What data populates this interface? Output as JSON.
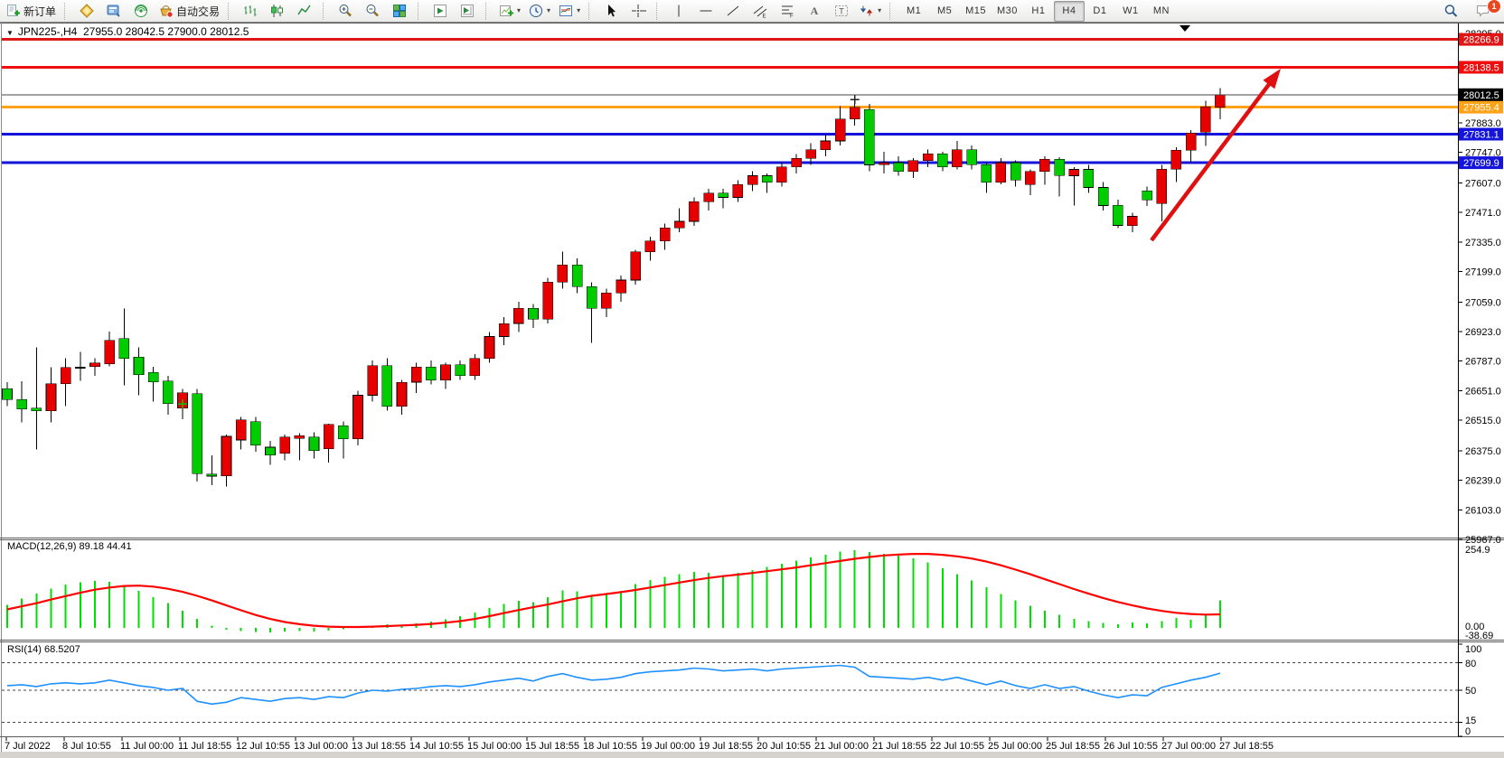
{
  "toolbar": {
    "active_timeframe": "H4",
    "groups": [
      {
        "items": [
          {
            "icon": "new-order",
            "label": "新订单",
            "name": "new-order-button"
          }
        ]
      },
      {
        "items": [
          {
            "icon": "charts-gold",
            "name": "market-watch-button"
          },
          {
            "icon": "terminal-blue",
            "name": "terminal-button"
          },
          {
            "icon": "signals-green",
            "name": "signals-button"
          },
          {
            "icon": "auto-trading",
            "label": "自动交易",
            "name": "auto-trading-button"
          }
        ]
      },
      {
        "items": [
          {
            "icon": "chart-bars",
            "name": "bar-chart-button"
          },
          {
            "icon": "chart-candles",
            "name": "candlestick-chart-button"
          },
          {
            "icon": "chart-line",
            "name": "line-chart-button"
          }
        ]
      },
      {
        "items": [
          {
            "icon": "zoom-in",
            "name": "zoom-in-button"
          },
          {
            "icon": "zoom-out",
            "name": "zoom-out-button"
          },
          {
            "icon": "tile-windows",
            "name": "tile-windows-button"
          }
        ]
      },
      {
        "items": [
          {
            "icon": "arrange-a",
            "name": "auto-scroll-button"
          },
          {
            "icon": "arrange-b",
            "name": "chart-shift-button"
          }
        ]
      },
      {
        "items": [
          {
            "icon": "add-indicator",
            "dropdown": true,
            "name": "indicators-button"
          },
          {
            "icon": "period-clock",
            "dropdown": true,
            "name": "periods-button"
          },
          {
            "icon": "template",
            "dropdown": true,
            "name": "templates-button"
          }
        ]
      },
      {
        "items": [
          {
            "icon": "cursor",
            "name": "cursor-button"
          },
          {
            "icon": "crosshair",
            "name": "crosshair-button"
          }
        ]
      },
      {
        "items": [
          {
            "icon": "vline",
            "name": "vertical-line-button"
          },
          {
            "icon": "hline",
            "name": "horizontal-line-button"
          },
          {
            "icon": "trendline",
            "name": "trendline-button"
          },
          {
            "icon": "channel",
            "name": "equidistant-channel-button"
          },
          {
            "icon": "fibo",
            "name": "fibonacci-button"
          },
          {
            "icon": "text-a",
            "name": "text-button"
          },
          {
            "icon": "text-label",
            "name": "text-label-button"
          },
          {
            "icon": "shapes",
            "dropdown": true,
            "name": "arrows-button"
          }
        ]
      },
      {
        "items": [
          {
            "tf": "M1"
          },
          {
            "tf": "M5"
          },
          {
            "tf": "M15"
          },
          {
            "tf": "M30"
          },
          {
            "tf": "H1"
          },
          {
            "tf": "H4"
          },
          {
            "tf": "D1"
          },
          {
            "tf": "W1"
          },
          {
            "tf": "MN"
          }
        ]
      }
    ],
    "right_items": [
      {
        "icon": "search",
        "name": "search-button"
      },
      {
        "icon": "chat",
        "badge": "1",
        "name": "notifications-button"
      }
    ]
  },
  "chart": {
    "symbol_period": "JPN225-,H4",
    "ohlc_text": "27955.0 28042.5 27900.0 28012.5"
  },
  "chart_data": {
    "type": "candlestick",
    "title": "JPN225-,H4",
    "colors": {
      "up": "#e60000",
      "down": "#00cc00",
      "wick": "#000000",
      "doji": "#000000"
    },
    "price_ticks": [
      "28295.0",
      "27883.0",
      "27747.0",
      "27607.0",
      "27471.0",
      "27335.0",
      "27199.0",
      "27059.0",
      "26923.0",
      "26787.0",
      "26651.0",
      "26515.0",
      "26375.0",
      "26239.0",
      "26103.0",
      "25967.0"
    ],
    "levels": [
      {
        "price": 28266.9,
        "label": "28266.9",
        "color": "#dd1616",
        "width": 3
      },
      {
        "price": 28138.5,
        "label": "28138.5",
        "color": "#ee0e0e",
        "width": 3
      },
      {
        "price": 27955.4,
        "label": "27955.4",
        "color": "#ffa216",
        "width": 3
      },
      {
        "price": 27831.1,
        "label": "27831.1",
        "color": "#1414dd",
        "width": 3
      },
      {
        "price": 27699.9,
        "label": "27699.9",
        "color": "#1414dd",
        "width": 3
      }
    ],
    "current_price": {
      "value": 28012.5,
      "label": "28012.5",
      "line_color": "#444444",
      "box_color": "#000000"
    },
    "candles": [
      [
        26660,
        26690,
        26580,
        26610
      ],
      [
        26610,
        26695,
        26505,
        26566
      ],
      [
        26570,
        26850,
        26380,
        26558
      ],
      [
        26558,
        26758,
        26505,
        26683
      ],
      [
        26683,
        26800,
        26580,
        26758
      ],
      [
        26758,
        26829,
        26696,
        26760
      ],
      [
        26762,
        26800,
        26720,
        26779
      ],
      [
        26775,
        26924,
        26762,
        26883
      ],
      [
        26891,
        27028,
        26675,
        26800
      ],
      [
        26805,
        26850,
        26630,
        26724
      ],
      [
        26735,
        26760,
        26600,
        26691
      ],
      [
        26695,
        26720,
        26540,
        26591
      ],
      [
        26570,
        26660,
        26520,
        26641
      ],
      [
        26637,
        26660,
        26233,
        26270
      ],
      [
        26267,
        26354,
        26217,
        26258
      ],
      [
        26260,
        26450,
        26210,
        26441
      ],
      [
        26424,
        26530,
        26380,
        26516
      ],
      [
        26508,
        26530,
        26370,
        26400
      ],
      [
        26391,
        26420,
        26310,
        26354
      ],
      [
        26362,
        26450,
        26330,
        26437
      ],
      [
        26432,
        26455,
        26330,
        26444
      ],
      [
        26437,
        26460,
        26340,
        26375
      ],
      [
        26383,
        26500,
        26320,
        26496
      ],
      [
        26490,
        26510,
        26340,
        26430
      ],
      [
        26430,
        26650,
        26400,
        26630
      ],
      [
        26630,
        26790,
        26600,
        26766
      ],
      [
        26766,
        26800,
        26560,
        26580
      ],
      [
        26580,
        26700,
        26540,
        26690
      ],
      [
        26690,
        26780,
        26640,
        26760
      ],
      [
        26760,
        26790,
        26680,
        26700
      ],
      [
        26700,
        26780,
        26660,
        26770
      ],
      [
        26770,
        26790,
        26700,
        26720
      ],
      [
        26720,
        26820,
        26700,
        26800
      ],
      [
        26800,
        26920,
        26780,
        26900
      ],
      [
        26900,
        26990,
        26860,
        26960
      ],
      [
        26960,
        27060,
        26920,
        27030
      ],
      [
        27030,
        27050,
        26940,
        26980
      ],
      [
        26980,
        27170,
        26960,
        27150
      ],
      [
        27150,
        27290,
        27120,
        27230
      ],
      [
        27230,
        27260,
        27100,
        27130
      ],
      [
        27130,
        27150,
        26870,
        27030
      ],
      [
        27030,
        27120,
        26990,
        27100
      ],
      [
        27100,
        27180,
        27060,
        27160
      ],
      [
        27160,
        27300,
        27140,
        27290
      ],
      [
        27290,
        27360,
        27250,
        27340
      ],
      [
        27340,
        27420,
        27300,
        27400
      ],
      [
        27400,
        27490,
        27380,
        27430
      ],
      [
        27430,
        27540,
        27410,
        27520
      ],
      [
        27520,
        27580,
        27480,
        27560
      ],
      [
        27560,
        27580,
        27490,
        27540
      ],
      [
        27540,
        27620,
        27520,
        27600
      ],
      [
        27600,
        27660,
        27570,
        27640
      ],
      [
        27640,
        27650,
        27560,
        27610
      ],
      [
        27610,
        27700,
        27590,
        27680
      ],
      [
        27680,
        27740,
        27650,
        27720
      ],
      [
        27720,
        27790,
        27690,
        27760
      ],
      [
        27760,
        27830,
        27730,
        27800
      ],
      [
        27800,
        27960,
        27780,
        27900
      ],
      [
        27900,
        27990,
        27870,
        27955
      ],
      [
        27945,
        27970,
        27660,
        27690
      ],
      [
        27690,
        27750,
        27650,
        27700
      ],
      [
        27700,
        27730,
        27640,
        27660
      ],
      [
        27660,
        27720,
        27630,
        27710
      ],
      [
        27710,
        27760,
        27680,
        27740
      ],
      [
        27740,
        27750,
        27660,
        27680
      ],
      [
        27680,
        27800,
        27670,
        27760
      ],
      [
        27760,
        27780,
        27670,
        27690
      ],
      [
        27690,
        27700,
        27560,
        27610
      ],
      [
        27610,
        27720,
        27600,
        27700
      ],
      [
        27700,
        27710,
        27590,
        27620
      ],
      [
        27600,
        27670,
        27550,
        27660
      ],
      [
        27660,
        27730,
        27599,
        27715
      ],
      [
        27715,
        27725,
        27545,
        27640
      ],
      [
        27640,
        27680,
        27503,
        27669
      ],
      [
        27669,
        27690,
        27560,
        27586
      ],
      [
        27586,
        27610,
        27480,
        27503
      ],
      [
        27503,
        27530,
        27399,
        27411
      ],
      [
        27411,
        27470,
        27380,
        27453
      ],
      [
        27570,
        27590,
        27500,
        27528
      ],
      [
        27512,
        27690,
        27430,
        27670
      ],
      [
        27670,
        27770,
        27610,
        27757
      ],
      [
        27757,
        27850,
        27700,
        27836
      ],
      [
        27840,
        27985,
        27778,
        27957
      ],
      [
        27955.0,
        28042.5,
        27900.0,
        28012.5
      ]
    ],
    "markers": [
      {
        "index": 12,
        "price": 26590,
        "color": "#00cc00"
      },
      {
        "index": 58,
        "price": 27990,
        "color": "#222222"
      }
    ],
    "arrow": {
      "from": [
        1274,
        266
      ],
      "to": [
        1417,
        76
      ],
      "color": "#e01010"
    },
    "macd": {
      "label": "MACD(12,26,9)",
      "values_text": "89.18 44.41",
      "axis_ticks": [
        "254.9",
        "0.00",
        "-38.69"
      ],
      "hist_color": "#00dd00",
      "signal_color": "#ff0000",
      "histogram": [
        75,
        95,
        112,
        128,
        140,
        148,
        152,
        150,
        138,
        120,
        100,
        80,
        55,
        30,
        8,
        -6,
        -10,
        -13,
        -14,
        -12,
        -10,
        -12,
        -9,
        -4,
        3,
        8,
        12,
        10,
        14,
        20,
        28,
        38,
        50,
        64,
        78,
        88,
        84,
        100,
        122,
        118,
        104,
        108,
        120,
        142,
        156,
        166,
        174,
        182,
        178,
        172,
        178,
        188,
        198,
        208,
        218,
        228,
        238,
        248,
        252,
        246,
        240,
        234,
        226,
        212,
        194,
        174,
        154,
        132,
        110,
        90,
        72,
        56,
        42,
        30,
        22,
        16,
        12,
        18,
        14,
        22,
        32,
        26,
        46,
        89
      ],
      "signal": [
        60,
        70,
        80,
        92,
        103,
        114,
        124,
        131,
        136,
        137,
        134,
        127,
        117,
        104,
        89,
        73,
        57,
        42,
        29,
        19,
        12,
        7,
        4,
        3,
        3,
        4,
        6,
        8,
        10,
        13,
        17,
        22,
        29,
        38,
        48,
        58,
        67,
        76,
        86,
        96,
        104,
        110,
        116,
        123,
        131,
        139,
        147,
        155,
        162,
        168,
        173,
        178,
        184,
        190,
        196,
        203,
        210,
        217,
        224,
        230,
        235,
        238,
        240,
        240,
        237,
        232,
        225,
        215,
        203,
        189,
        174,
        158,
        142,
        126,
        111,
        97,
        84,
        73,
        63,
        55,
        49,
        45,
        43,
        44
      ]
    },
    "rsi": {
      "label": "RSI(14)",
      "value_text": "68.5207",
      "axis_ticks": [
        "100",
        "80",
        "50",
        "15",
        "0"
      ],
      "level_lines": [
        80,
        50,
        15
      ],
      "color": "#1e90ff",
      "series": [
        55,
        56,
        54,
        57,
        58,
        57,
        58,
        61,
        58,
        55,
        53,
        50,
        52,
        38,
        35,
        37,
        42,
        40,
        38,
        41,
        42,
        40,
        43,
        42,
        47,
        50,
        49,
        51,
        52,
        54,
        55,
        54,
        56,
        59,
        61,
        63,
        60,
        65,
        68,
        64,
        61,
        62,
        64,
        68,
        70,
        71,
        72,
        74,
        73,
        71,
        72,
        73,
        71,
        73,
        74,
        75,
        76,
        77,
        75,
        65,
        64,
        63,
        62,
        64,
        61,
        64,
        60,
        56,
        60,
        55,
        52,
        56,
        52,
        54,
        49,
        45,
        42,
        45,
        44,
        53,
        57,
        61,
        64,
        68.5
      ]
    },
    "time_labels": [
      "7 Jul 2022",
      "8 Jul 10:55",
      "11 Jul 00:00",
      "11 Jul 18:55",
      "12 Jul 10:55",
      "13 Jul 00:00",
      "13 Jul 18:55",
      "14 Jul 10:55",
      "15 Jul 00:00",
      "15 Jul 18:55",
      "18 Jul 10:55",
      "19 Jul 00:00",
      "19 Jul 18:55",
      "20 Jul 10:55",
      "21 Jul 00:00",
      "21 Jul 18:55",
      "22 Jul 10:55",
      "25 Jul 00:00",
      "25 Jul 18:55",
      "26 Jul 10:55",
      "27 Jul 00:00",
      "27 Jul 18:55"
    ]
  }
}
